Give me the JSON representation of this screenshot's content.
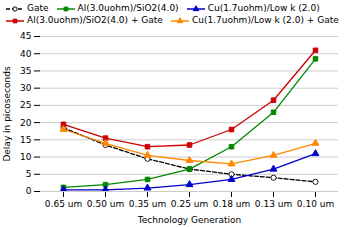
{
  "chart_data": {
    "type": "line",
    "categories": [
      "0.65 um",
      "0.50 um",
      "0.35 um",
      "0.25 um",
      "0.18 um",
      "0.13 um",
      "0.10 um"
    ],
    "series": [
      {
        "name": "Gate",
        "color": "#000000",
        "marker": "circle_open",
        "line_style": "dashed",
        "values": [
          18.5,
          13.5,
          9.5,
          6.5,
          5.0,
          4.0,
          2.8
        ]
      },
      {
        "name": "Al(3.0uohm)/SiO2(4.0)",
        "color": "#008800",
        "marker": "square",
        "line_style": "solid",
        "values": [
          1.2,
          2.0,
          3.5,
          6.5,
          13.0,
          23.0,
          38.5
        ]
      },
      {
        "name": "Cu(1.7uohm)/Low k (2.0)",
        "color": "#0000cc",
        "marker": "triangle",
        "line_style": "solid",
        "values": [
          0.5,
          0.5,
          1.0,
          2.0,
          3.5,
          6.5,
          11.0
        ]
      },
      {
        "name": "Al(3.0uohm)/SiO2(4.0) + Gate",
        "color": "#cc0000",
        "marker": "square",
        "line_style": "solid",
        "values": [
          19.5,
          15.5,
          13.0,
          13.5,
          18.0,
          26.5,
          41.0
        ]
      },
      {
        "name": "Cu(1.7uohm)/Low k (2.0) + Gate",
        "color": "#ff8800",
        "marker": "triangle",
        "line_style": "solid",
        "values": [
          18.0,
          14.0,
          10.5,
          9.0,
          8.0,
          10.5,
          14.0
        ]
      }
    ],
    "xlabel": "Technology Generation",
    "ylabel": "Delay in picoseconds",
    "ylim": [
      0,
      45
    ],
    "yticks": [
      0,
      5,
      10,
      15,
      20,
      25,
      30,
      35,
      40,
      45
    ],
    "grid": true,
    "legend": "upper left"
  }
}
